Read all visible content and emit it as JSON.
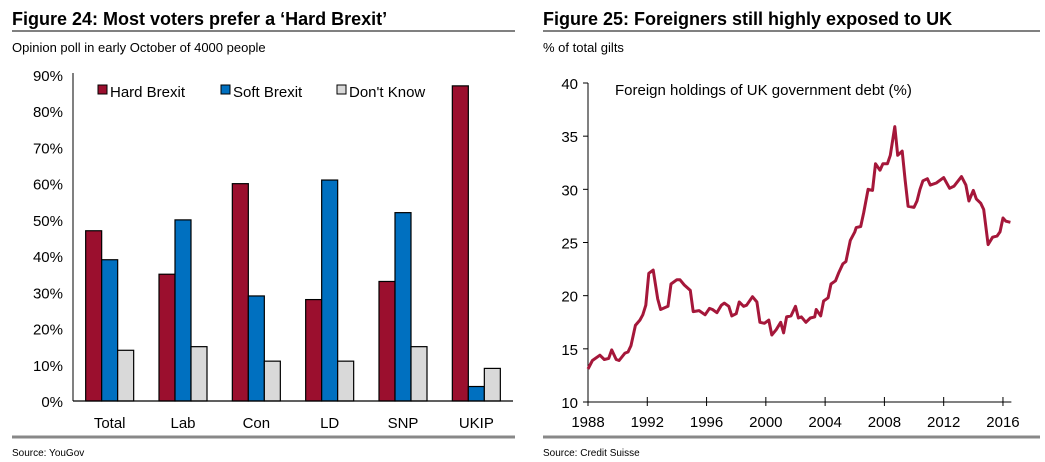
{
  "colors": {
    "hard": "#9b0f2e",
    "soft": "#0070c0",
    "dontknow": "#d9d9d9",
    "line": "#a5173a"
  },
  "chart_data": [
    {
      "type": "bar",
      "title": "Figure 24: Most voters prefer a ‘Hard Brexit’",
      "subtitle": "Opinion poll in early October of 4000 people",
      "source": "Source: YouGov",
      "categories": [
        "Total",
        "Lab",
        "Con",
        "LD",
        "SNP",
        "UKIP"
      ],
      "series": [
        {
          "name": "Hard Brexit",
          "values": [
            47,
            35,
            60,
            28,
            33,
            87
          ]
        },
        {
          "name": "Soft Brexit",
          "values": [
            39,
            50,
            29,
            61,
            52,
            4
          ]
        },
        {
          "name": "Don't Know",
          "values": [
            14,
            15,
            11,
            11,
            15,
            9
          ]
        }
      ],
      "ylim": [
        0,
        90
      ],
      "yticks": [
        "0%",
        "10%",
        "20%",
        "30%",
        "40%",
        "50%",
        "60%",
        "70%",
        "80%",
        "90%"
      ],
      "legend": "top",
      "grid": false
    },
    {
      "type": "line",
      "title": "Figure 25: Foreigners still highly exposed to UK",
      "subtitle": "% of total gilts",
      "source": "Source: Credit Suisse",
      "series": [
        {
          "name": "Foreign holdings of UK government debt (%)",
          "x": [
            1988.0,
            1988.3,
            1988.8,
            1989.1,
            1989.4,
            1989.6,
            1989.9,
            1990.1,
            1990.5,
            1990.7,
            1990.9,
            1991.2,
            1991.5,
            1991.7,
            1991.9,
            1992.1,
            1992.4,
            1992.7,
            1992.9,
            1993.4,
            1993.6,
            1994.0,
            1994.2,
            1994.5,
            1994.9,
            1995.1,
            1995.5,
            1995.9,
            1996.2,
            1996.4,
            1996.7,
            1997.0,
            1997.2,
            1997.5,
            1997.7,
            1998.0,
            1998.2,
            1998.5,
            1998.7,
            1999.1,
            1999.4,
            1999.6,
            1999.9,
            2000.2,
            2000.4,
            2000.7,
            2001.0,
            2001.2,
            2001.4,
            2001.7,
            2002.0,
            2002.2,
            2002.4,
            2002.7,
            2003.0,
            2003.3,
            2003.4,
            2003.7,
            2003.9,
            2004.2,
            2004.4,
            2004.7,
            2004.9,
            2005.2,
            2005.4,
            2005.7,
            2006.0,
            2006.1,
            2006.4,
            2006.6,
            2006.9,
            2007.2,
            2007.4,
            2007.7,
            2007.9,
            2008.2,
            2008.4,
            2008.7,
            2008.9,
            2009.2,
            2009.4,
            2009.6,
            2010.0,
            2010.2,
            2010.4,
            2010.6,
            2010.9,
            2011.1,
            2011.5,
            2012.0,
            2012.4,
            2012.7,
            2013.2,
            2013.5,
            2013.7,
            2014.0,
            2014.2,
            2014.5,
            2014.7,
            2015.0,
            2015.3,
            2015.6,
            2015.8,
            2016.0,
            2016.2,
            2016.5
          ],
          "y": [
            13.1,
            13.9,
            14.4,
            14.0,
            14.1,
            14.9,
            14.0,
            13.9,
            14.6,
            14.7,
            15.3,
            17.2,
            17.7,
            18.2,
            19.1,
            22.1,
            22.4,
            19.7,
            18.7,
            19.0,
            21.1,
            21.5,
            21.5,
            21.0,
            20.5,
            18.5,
            18.6,
            18.2,
            18.8,
            18.7,
            18.4,
            19.1,
            19.3,
            19.0,
            18.1,
            18.3,
            19.4,
            19.0,
            19.1,
            19.9,
            19.4,
            17.5,
            17.4,
            17.7,
            16.3,
            16.8,
            17.5,
            16.5,
            18.0,
            18.1,
            19.0,
            17.9,
            18.0,
            17.5,
            17.9,
            18.0,
            18.7,
            18.1,
            19.5,
            19.8,
            21.1,
            21.4,
            22.1,
            23.0,
            23.2,
            25.2,
            26.0,
            26.4,
            26.5,
            27.8,
            30.0,
            29.9,
            32.4,
            31.8,
            32.4,
            32.4,
            33.2,
            35.9,
            33.2,
            33.6,
            30.9,
            28.4,
            28.3,
            28.9,
            30.0,
            30.8,
            31.0,
            30.4,
            30.6,
            31.1,
            30.1,
            30.3,
            31.2,
            30.4,
            28.9,
            29.9,
            29.1,
            28.7,
            28.1,
            24.8,
            25.5,
            25.6,
            26.0,
            27.3,
            27.0,
            26.9
          ]
        }
      ],
      "xlim": [
        1988,
        2016.5
      ],
      "xticks": [
        "1988",
        "1992",
        "1996",
        "2000",
        "2004",
        "2008",
        "2012",
        "2016"
      ],
      "ylim": [
        10,
        40
      ],
      "yticks": [
        "10",
        "15",
        "20",
        "25",
        "30",
        "35",
        "40"
      ],
      "legend": "top-left",
      "grid": false
    }
  ]
}
